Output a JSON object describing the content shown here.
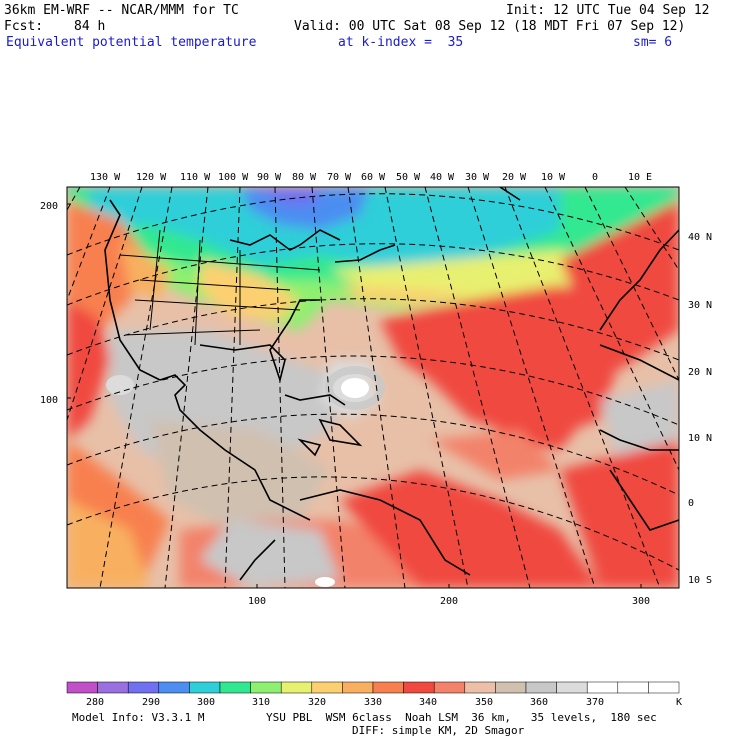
{
  "header": {
    "model_line": "36km EM-WRF -- NCAR/MMM for TC",
    "init_line": "Init: 12 UTC Tue 04 Sep 12",
    "fcst_label": "Fcst:",
    "fcst_hours": "84 h",
    "valid_line": "Valid: 00 UTC Sat 08 Sep 12 (18 MDT Fri 07 Sep 12)",
    "field_name": "Equivalent potential temperature",
    "level_text": "at k-index =  35",
    "smooth_text": "sm= 6"
  },
  "map": {
    "top_lon_labels": [
      "130 W",
      "120 W",
      "110 W",
      "100 W",
      "90 W",
      "80 W",
      "70 W",
      "60 W",
      "50 W",
      "40 W",
      "30 W",
      "20 W",
      "10 W",
      "0",
      "10 E"
    ],
    "right_lat_labels": [
      "40 N",
      "30 N",
      "20 N",
      "10 N",
      "0",
      "10 S"
    ],
    "left_grid_labels": [
      "200",
      "100"
    ],
    "bottom_grid_labels": [
      "100",
      "200",
      "300"
    ]
  },
  "legend": {
    "ticks": [
      "280",
      "290",
      "300",
      "310",
      "320",
      "330",
      "340",
      "350",
      "360",
      "370"
    ],
    "unit": "K",
    "colors": [
      "#c050c8",
      "#9a70e0",
      "#7070f0",
      "#4c8ef2",
      "#2ecfd8",
      "#30e890",
      "#8ef070",
      "#e8f070",
      "#fcd070",
      "#f8b060",
      "#f88050",
      "#f04a40",
      "#f3826a",
      "#ecc0a8",
      "#d0c0b0",
      "#c8c8c8",
      "#dcdcdc",
      "#ffffff",
      "#ffffff",
      "#ffffff"
    ]
  },
  "footer": {
    "model_info": "Model Info: V3.3.1 M",
    "physics": "YSU PBL  WSM 6class  Noah LSM  36 km,   35 levels,  180 sec",
    "diffusion": "DIFF: simple KM, 2D Smagor"
  }
}
